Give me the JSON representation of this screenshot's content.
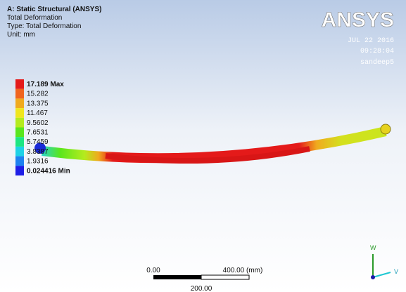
{
  "header": {
    "title": "A: Static Structural (ANSYS)",
    "lines": [
      "Total Deformation",
      "Type: Total Deformation",
      "Unit: mm"
    ]
  },
  "logo": "ANSYS",
  "stamp": {
    "date": "JUL 22 2016",
    "time": "09:28:04",
    "user": "sandeep5"
  },
  "legend": [
    {
      "label": "17.189 Max",
      "color": "#e41a1a"
    },
    {
      "label": "15.282",
      "color": "#f0641e"
    },
    {
      "label": "13.375",
      "color": "#f0aa1e"
    },
    {
      "label": "11.467",
      "color": "#f0e61e"
    },
    {
      "label": "9.5602",
      "color": "#b4eb1e"
    },
    {
      "label": "7.6531",
      "color": "#5ae61e"
    },
    {
      "label": "5.7459",
      "color": "#1ee682"
    },
    {
      "label": "3.8387",
      "color": "#1ed2e6"
    },
    {
      "label": "1.9316",
      "color": "#1e82f0"
    },
    {
      "label": "0.024416 Min",
      "color": "#1e1ee6"
    }
  ],
  "scale_bar": {
    "start": "0.00",
    "end": "400.00 (mm)",
    "mid": "200.00"
  },
  "triad": {
    "up": "W",
    "right": "V"
  }
}
